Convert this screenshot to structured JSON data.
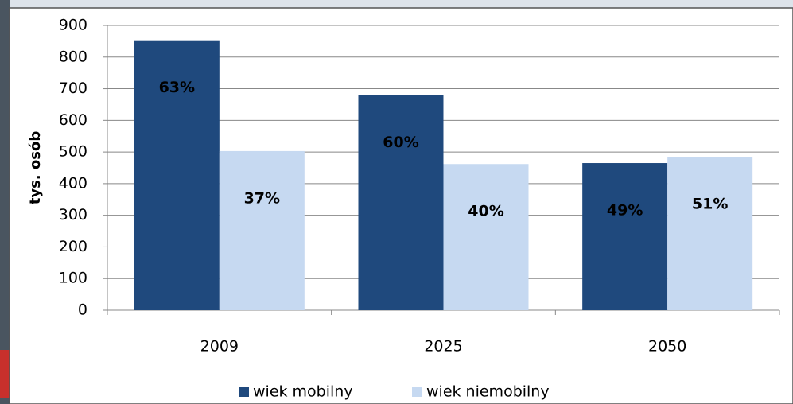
{
  "chart_data": {
    "type": "bar",
    "y_axis_label": "tys. osób",
    "categories": [
      "2009",
      "2025",
      "2050"
    ],
    "series": [
      {
        "name": "wiek mobilny",
        "color": "#1f497d",
        "values": [
          853,
          680,
          465
        ],
        "value_labels": [
          "63%",
          "60%",
          "49%"
        ],
        "label_color": "#ffffff"
      },
      {
        "name": "wiek niemobilny",
        "color": "#c6d9f1",
        "values": [
          503,
          462,
          485
        ],
        "value_labels": [
          "37%",
          "40%",
          "51%"
        ],
        "label_color": "#000000"
      }
    ],
    "ylim": [
      0,
      900
    ],
    "yticks": [
      0,
      100,
      200,
      300,
      400,
      500,
      600,
      700,
      800,
      900
    ],
    "grid": true,
    "legend": "bottom"
  }
}
